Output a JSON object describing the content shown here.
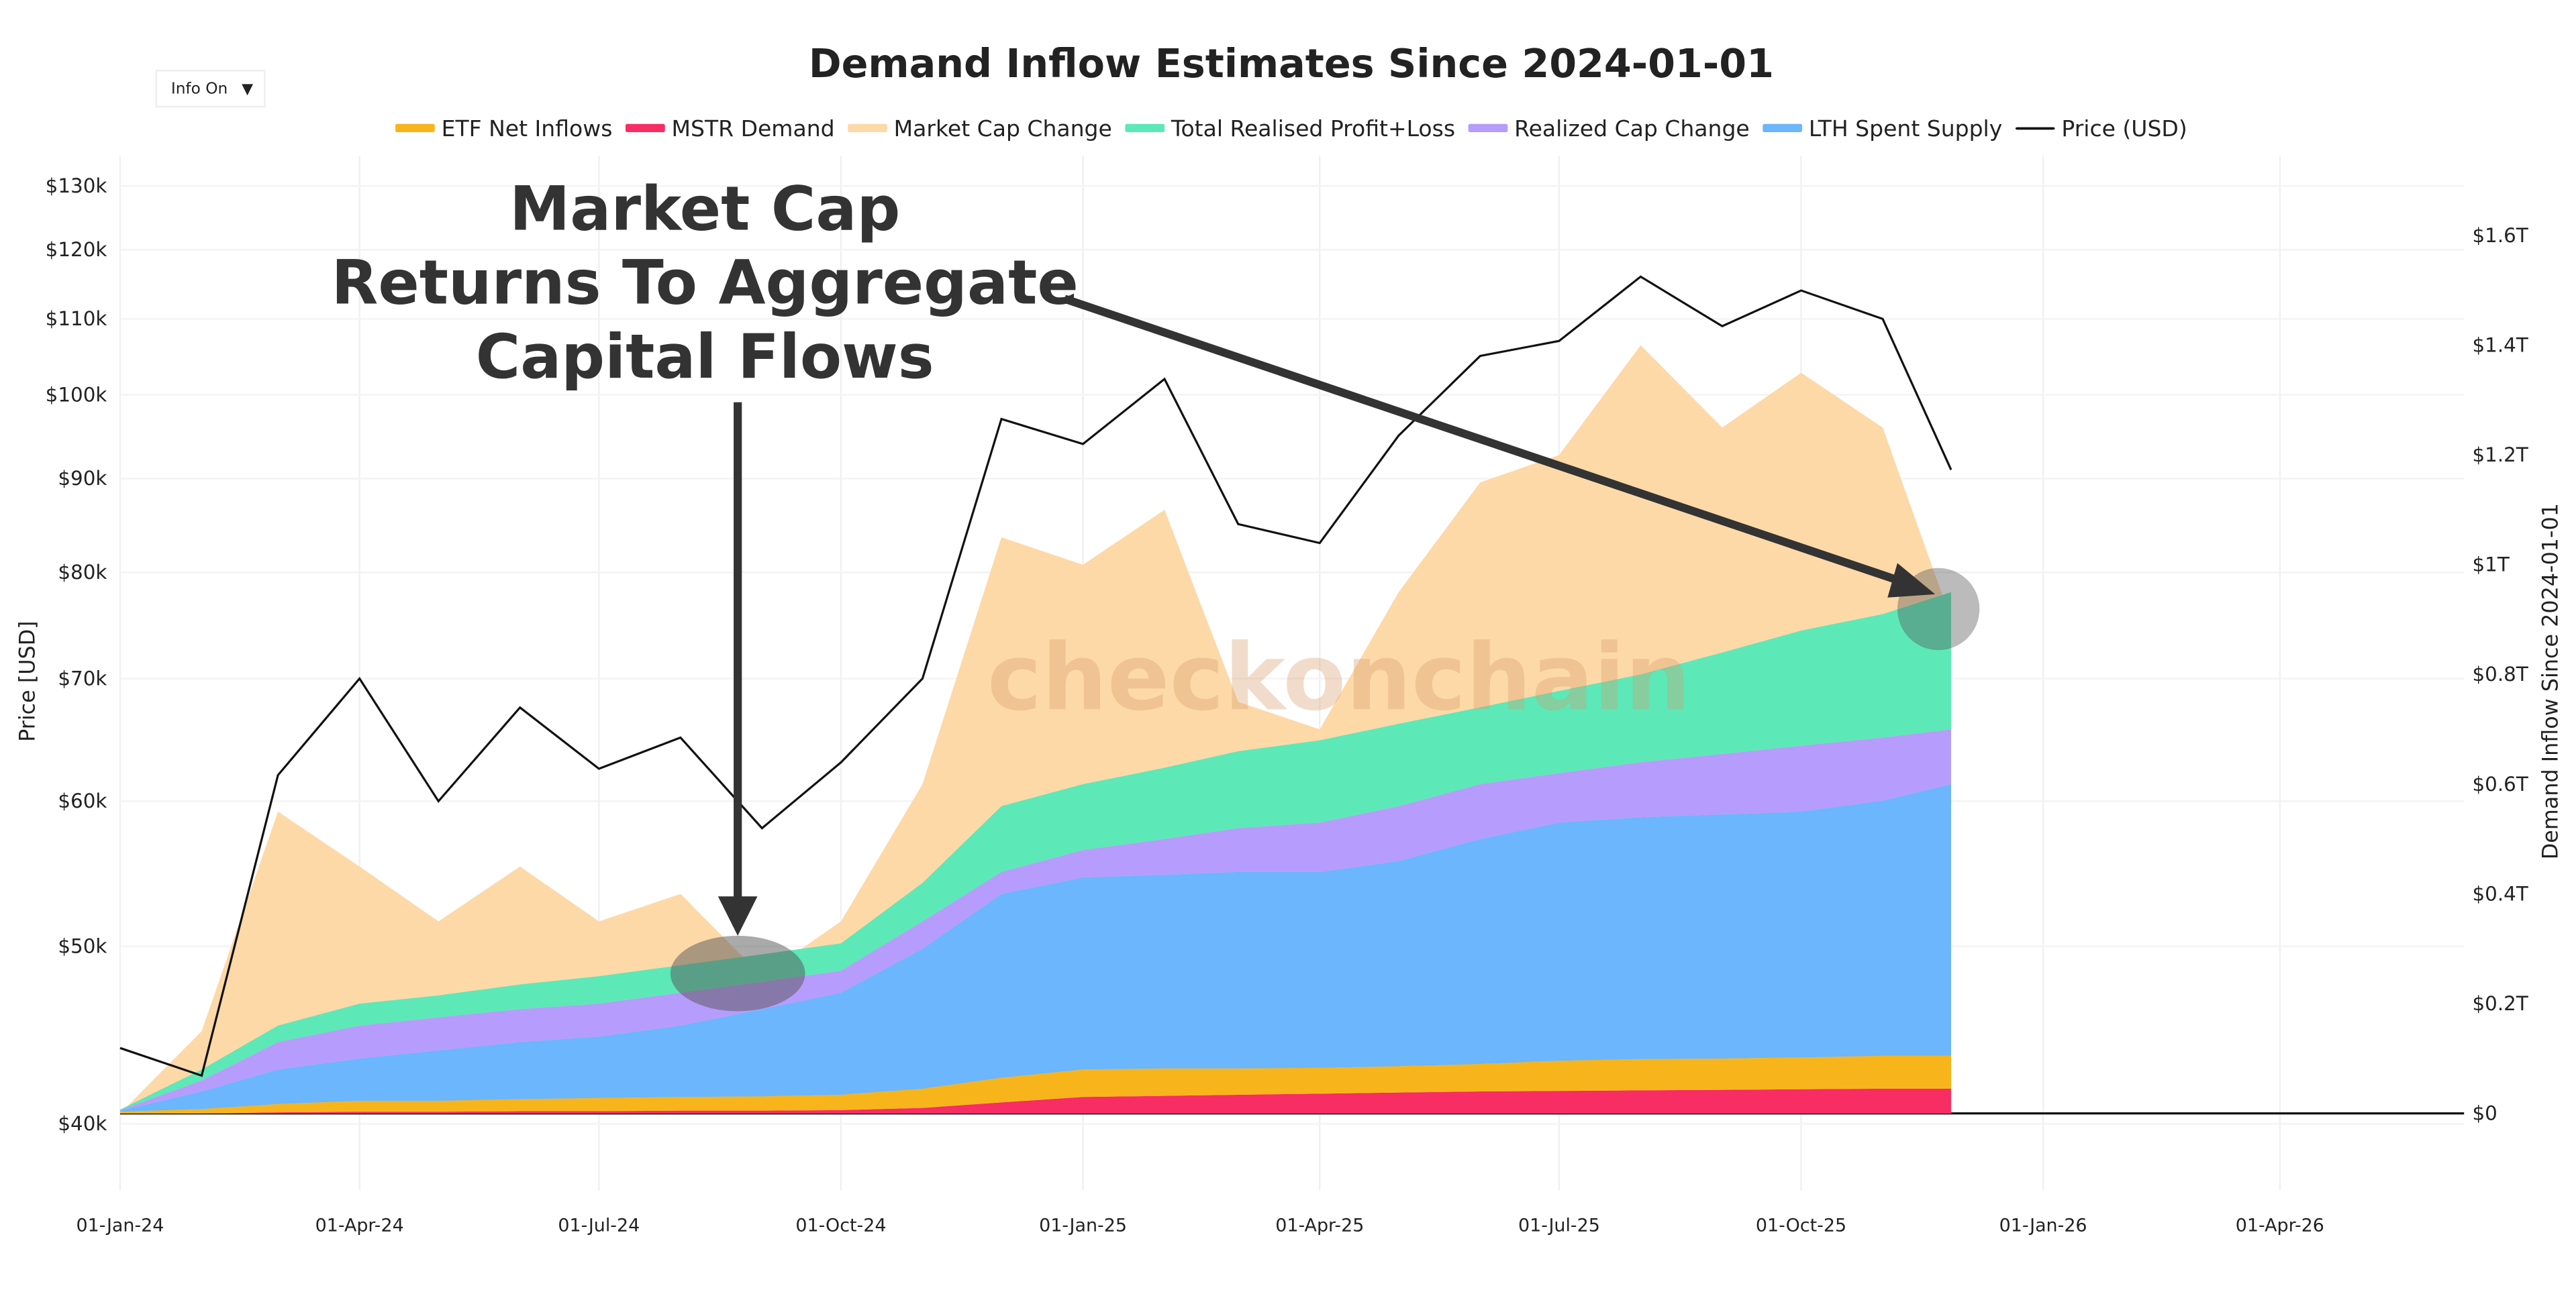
{
  "chart_data": {
    "type": "area",
    "title": "Demand Inflow Estimates Since 2024-01-01",
    "dropdown": "Info On",
    "annotation_lines": [
      "Market Cap",
      "Returns To Aggregate",
      "Capital Flows"
    ],
    "watermark": "checkonchain",
    "ylabel": "Price [USD]",
    "y2label": "Demand Inflow Since 2024-01-01",
    "log_y": true,
    "grid": true,
    "legend": "top",
    "x": [
      "2024-01-01",
      "2024-02-01",
      "2024-03-01",
      "2024-04-01",
      "2024-05-01",
      "2024-06-01",
      "2024-07-01",
      "2024-08-01",
      "2024-09-01",
      "2024-10-01",
      "2024-11-01",
      "2024-12-01",
      "2025-01-01",
      "2025-02-01",
      "2025-03-01",
      "2025-04-01",
      "2025-05-01",
      "2025-06-01",
      "2025-07-01",
      "2025-08-01",
      "2025-09-01",
      "2025-10-01",
      "2025-11-01",
      "2025-11-27"
    ],
    "xlim": [
      "2024-01-01",
      "2026-06-10"
    ],
    "xticks": [
      {
        "value": "2024-01-01",
        "label": "01-Jan-24"
      },
      {
        "value": "2024-04-01",
        "label": "01-Apr-24"
      },
      {
        "value": "2024-07-01",
        "label": "01-Jul-24"
      },
      {
        "value": "2024-10-01",
        "label": "01-Oct-24"
      },
      {
        "value": "2025-01-01",
        "label": "01-Jan-25"
      },
      {
        "value": "2025-04-01",
        "label": "01-Apr-25"
      },
      {
        "value": "2025-07-01",
        "label": "01-Jul-25"
      },
      {
        "value": "2025-10-01",
        "label": "01-Oct-25"
      },
      {
        "value": "2026-01-01",
        "label": "01-Jan-26"
      },
      {
        "value": "2026-04-01",
        "label": "01-Apr-26"
      }
    ],
    "ylim": [
      36800,
      135000
    ],
    "yticks": [
      {
        "value": 40000,
        "label": "$40k"
      },
      {
        "value": 50000,
        "label": "$50k"
      },
      {
        "value": 60000,
        "label": "$60k"
      },
      {
        "value": 70000,
        "label": "$70k"
      },
      {
        "value": 80000,
        "label": "$80k"
      },
      {
        "value": 90000,
        "label": "$90k"
      },
      {
        "value": 100000,
        "label": "$100k"
      },
      {
        "value": 110000,
        "label": "$110k"
      },
      {
        "value": 120000,
        "label": "$120k"
      },
      {
        "value": 130000,
        "label": "$130k"
      }
    ],
    "y2lim": [
      -0.14,
      1.745
    ],
    "y2ticks": [
      {
        "value": 0,
        "label": "$0"
      },
      {
        "value": 0.2,
        "label": "$0.2T"
      },
      {
        "value": 0.4,
        "label": "$0.4T"
      },
      {
        "value": 0.6,
        "label": "$0.6T"
      },
      {
        "value": 0.8,
        "label": "$0.8T"
      },
      {
        "value": 1,
        "label": "$1T"
      },
      {
        "value": 1.2,
        "label": "$1.2T"
      },
      {
        "value": 1.4,
        "label": "$1.4T"
      },
      {
        "value": 1.6,
        "label": "$1.6T"
      }
    ],
    "series": [
      {
        "name": "ETF Net Inflows",
        "color": "#f7b51b",
        "axis": "y2",
        "stacked": true,
        "stack_position": 1,
        "values": [
          0.003,
          0.008,
          0.015,
          0.02,
          0.02,
          0.022,
          0.024,
          0.025,
          0.026,
          0.028,
          0.035,
          0.045,
          0.05,
          0.05,
          0.048,
          0.047,
          0.048,
          0.05,
          0.055,
          0.057,
          0.057,
          0.058,
          0.06,
          0.06
        ]
      },
      {
        "name": "MSTR Demand",
        "color": "#f72d64",
        "axis": "y2",
        "stacked": true,
        "stack_position": 0,
        "values": [
          0,
          0,
          0.002,
          0.003,
          0.003,
          0.004,
          0.004,
          0.005,
          0.005,
          0.006,
          0.01,
          0.02,
          0.03,
          0.032,
          0.034,
          0.036,
          0.038,
          0.04,
          0.041,
          0.042,
          0.043,
          0.044,
          0.045,
          0.045
        ]
      },
      {
        "name": "Market Cap Change",
        "color": "#fdd9a8",
        "axis": "y2",
        "stacked": false,
        "values": [
          0,
          0.15,
          0.55,
          0.45,
          0.35,
          0.45,
          0.35,
          0.4,
          0.25,
          0.35,
          0.6,
          1.05,
          1,
          1.1,
          0.75,
          0.7,
          0.95,
          1.15,
          1.2,
          1.4,
          1.25,
          1.35,
          1.25,
          0.9
        ]
      },
      {
        "name": "Total Realised Profit+Loss",
        "color": "#5de8b8",
        "axis": "y2",
        "stacked": true,
        "stack_position": 4,
        "values": [
          0.001,
          0.02,
          0.03,
          0.04,
          0.04,
          0.045,
          0.05,
          0.05,
          0.05,
          0.05,
          0.07,
          0.12,
          0.12,
          0.13,
          0.14,
          0.15,
          0.15,
          0.14,
          0.15,
          0.16,
          0.185,
          0.21,
          0.225,
          0.25
        ]
      },
      {
        "name": "Realized Cap Change",
        "color": "#b69cfc",
        "axis": "y2",
        "stacked": true,
        "stack_position": 3,
        "values": [
          0.001,
          0.02,
          0.05,
          0.06,
          0.06,
          0.06,
          0.06,
          0.06,
          0.05,
          0.04,
          0.05,
          0.04,
          0.05,
          0.065,
          0.08,
          0.09,
          0.1,
          0.1,
          0.09,
          0.1,
          0.11,
          0.12,
          0.115,
          0.1
        ]
      },
      {
        "name": "LTH Spent Supply",
        "color": "#6bb6fc",
        "axis": "y2",
        "stacked": true,
        "stack_position": 2,
        "values": [
          0.002,
          0.032,
          0.063,
          0.077,
          0.092,
          0.104,
          0.112,
          0.13,
          0.159,
          0.186,
          0.255,
          0.335,
          0.35,
          0.353,
          0.358,
          0.357,
          0.374,
          0.41,
          0.434,
          0.441,
          0.445,
          0.448,
          0.465,
          0.495
        ]
      },
      {
        "name": "Price (USD)",
        "color": "#111111",
        "axis": "y",
        "stacked": false,
        "values": [
          44000,
          42500,
          62000,
          70000,
          60000,
          67500,
          62500,
          65000,
          58000,
          63000,
          70000,
          97000,
          94000,
          102000,
          85000,
          83000,
          95000,
          105000,
          107000,
          116000,
          109000,
          114000,
          110000,
          91000
        ]
      }
    ]
  }
}
